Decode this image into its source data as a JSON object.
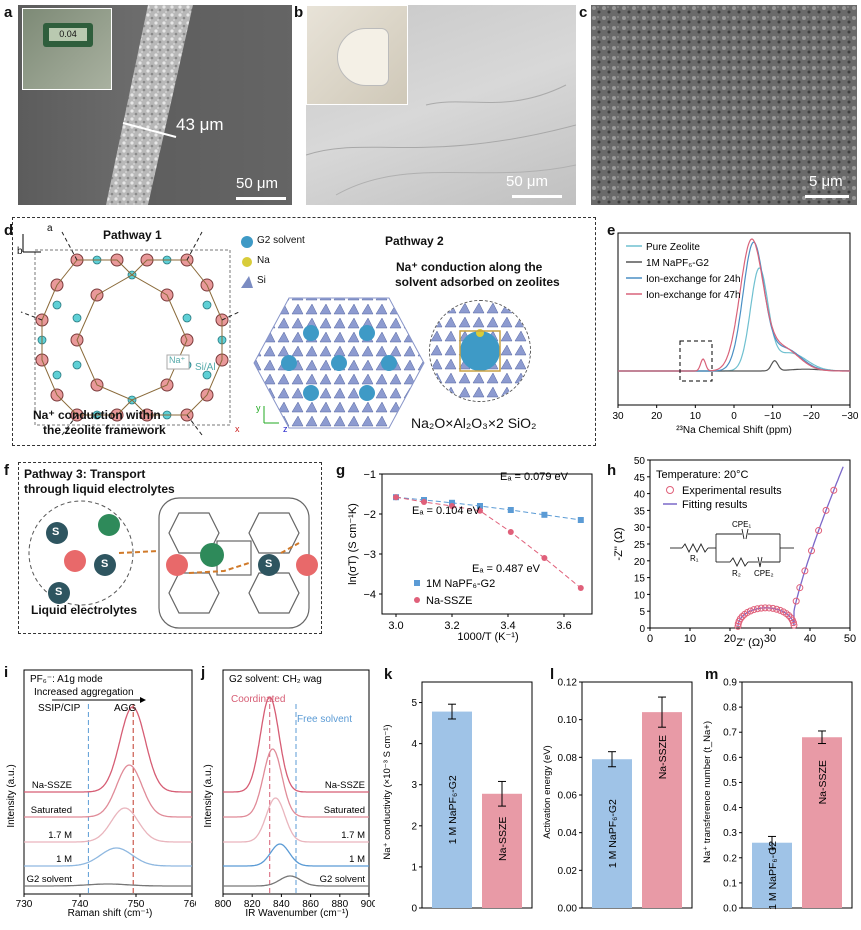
{
  "panels": {
    "a": {
      "letter": "a",
      "thickness": "43 μm",
      "scale": "50 μm",
      "caliper_reading": "0.04"
    },
    "b": {
      "letter": "b",
      "scale": "50 μm"
    },
    "c": {
      "letter": "c",
      "scale": "5 μm"
    },
    "d": {
      "letter": "d",
      "pathway1_title": "Pathway 1",
      "pathway1_caption_line1": "Na⁺ conduction within",
      "pathway1_caption_line2": "the zeolite framework",
      "axis_a": "a",
      "axis_b": "b",
      "label_na": "Na⁺",
      "label_sial": "Si/Al",
      "legend": [
        "G2 solvent",
        "Na",
        "Si"
      ],
      "pathway2_title": "Pathway 2",
      "pathway2_caption_line1": "Na⁺ conduction along the",
      "pathway2_caption_line2": "solvent adsorbed on zeolites",
      "axes3d": [
        "y",
        "x",
        "z"
      ],
      "formula": "Na₂O×Al₂O₃×2 SiO₂"
    },
    "e": {
      "letter": "e",
      "legend": [
        "Pure Zeolite",
        "1M NaPF₆-G2",
        "Ion-exchange for 24h",
        "Ion-exchange for 47h"
      ],
      "xlabel": "²³Na Chemical Shift (ppm)"
    },
    "f": {
      "letter": "f",
      "title_line1": "Pathway 3: Transport",
      "title_line2": "through liquid electrolytes",
      "caption": "Liquid electrolytes",
      "solvent_symbol": "S"
    },
    "g": {
      "letter": "g",
      "ylabel": "ln(σT) (S cm⁻¹K)",
      "xlabel": "1000/T (K⁻¹)",
      "ea1": "Eₐ = 0.079 eV",
      "ea2": "Eₐ = 0.104 eV",
      "ea3": "Eₐ = 0.487 eV",
      "legend": [
        "1M NaPF₆-G2",
        "Na-SSZE"
      ]
    },
    "h": {
      "letter": "h",
      "ylabel": "-Z'' (Ω)",
      "xlabel": "Z' (Ω)",
      "temp": "Temperature: 20°C",
      "legend": [
        "Experimental results",
        "Fitting results"
      ],
      "circuit": [
        "R₁",
        "CPE₁",
        "R₂",
        "CPE₂"
      ]
    },
    "i": {
      "letter": "i",
      "title": "PF₆⁻:   A1g mode",
      "agg": "Increased aggregation",
      "ssip": "SSIP/CIP",
      "aggl": "AGG",
      "ylabel": "Intensity (a.u.)",
      "xlabel": "Raman shift (cm⁻¹)",
      "curves": [
        "Na-SSZE",
        "Saturated",
        "1.7 M",
        "1 M",
        "G2 solvent"
      ]
    },
    "j": {
      "letter": "j",
      "title": "G2 solvent: CH₂ wag",
      "coord": "Coordinated",
      "free": "Free solvent",
      "ylabel": "Intensity (a.u.)",
      "xlabel": "IR Wavenumber (cm⁻¹)",
      "curves": [
        "Na-SSZE",
        "Saturated",
        "1.7 M",
        "1 M",
        "G2 solvent"
      ]
    },
    "k": {
      "letter": "k",
      "ylabel": "Na⁺ conductivity (×10⁻³ S cm⁻¹)"
    },
    "l": {
      "letter": "l",
      "ylabel": "Activation energy (eV)"
    },
    "m": {
      "letter": "m",
      "ylabel": "Na⁺ transference number (t_Na+)"
    }
  },
  "chart_data": [
    {
      "id": "e",
      "type": "line",
      "xlabel": "²³Na Chemical Shift (ppm)",
      "xlim": [
        30,
        -30
      ],
      "xticks": [
        30,
        20,
        10,
        0,
        -10,
        -20,
        -30
      ],
      "series": [
        {
          "name": "Pure Zeolite",
          "color": "#6fc0d0"
        },
        {
          "name": "1M NaPF₆-G2",
          "color": "#555555"
        },
        {
          "name": "Ion-exchange for 24h",
          "color": "#4a8fc4"
        },
        {
          "name": "Ion-exchange for 47h",
          "color": "#d9637a"
        }
      ]
    },
    {
      "id": "g",
      "type": "scatter",
      "xlabel": "1000/T (K⁻¹)",
      "ylabel": "ln(σT) (S cm⁻¹K)",
      "xlim": [
        2.95,
        3.7
      ],
      "ylim": [
        -4.5,
        -1
      ],
      "xticks": [
        3.0,
        3.2,
        3.4,
        3.6
      ],
      "yticks": [
        -1,
        -2,
        -3,
        -4
      ],
      "series": [
        {
          "name": "1M NaPF₆-G2",
          "color": "#5b9bd5",
          "x": [
            3.0,
            3.1,
            3.2,
            3.3,
            3.41,
            3.53,
            3.66
          ],
          "y": [
            -1.58,
            -1.65,
            -1.72,
            -1.8,
            -1.9,
            -2.02,
            -2.15
          ]
        },
        {
          "name": "Na-SSZE",
          "color": "#e0607a",
          "x": [
            3.0,
            3.1,
            3.2,
            3.3,
            3.41,
            3.53,
            3.66
          ],
          "y": [
            -1.58,
            -1.7,
            -1.8,
            -1.92,
            -2.45,
            -3.1,
            -3.85
          ]
        }
      ]
    },
    {
      "id": "h",
      "type": "scatter",
      "xlabel": "Z' (Ω)",
      "ylabel": "-Z'' (Ω)",
      "xlim": [
        0,
        50
      ],
      "ylim": [
        0,
        50
      ],
      "xticks": [
        0,
        10,
        20,
        30,
        40,
        50
      ],
      "yticks": [
        0,
        5,
        10,
        15,
        20,
        25,
        30,
        35,
        40,
        45,
        50
      ],
      "series": [
        {
          "name": "Experimental results",
          "color": "#e0607a"
        },
        {
          "name": "Fitting results",
          "color": "#7b68c9"
        }
      ]
    },
    {
      "id": "i",
      "type": "line",
      "xlabel": "Raman shift (cm⁻¹)",
      "xlim": [
        730,
        760
      ],
      "xticks": [
        730,
        740,
        750,
        760
      ],
      "reference_lines": [
        741.5,
        749.5
      ]
    },
    {
      "id": "j",
      "type": "line",
      "xlabel": "IR Wavenumber (cm⁻¹)",
      "xlim": [
        800,
        900
      ],
      "xticks": [
        800,
        820,
        840,
        860,
        880,
        900
      ],
      "reference_lines": [
        832,
        850
      ]
    },
    {
      "id": "k",
      "type": "bar",
      "categories": [
        "1 M NaPF₆-G2",
        "Na-SSZE"
      ],
      "values": [
        4.78,
        2.78
      ],
      "errors": [
        0.18,
        0.3
      ],
      "ylabel": "Na⁺ conductivity (×10⁻³ S cm⁻¹)",
      "ylim": [
        0,
        5.5
      ],
      "yticks": [
        0,
        1,
        2,
        3,
        4,
        5
      ],
      "colors": [
        "#9fc3e7",
        "#e89aa6"
      ]
    },
    {
      "id": "l",
      "type": "bar",
      "categories": [
        "1 M NaPF₆-G2",
        "Na-SSZE"
      ],
      "values": [
        0.079,
        0.104
      ],
      "errors": [
        0.004,
        0.008
      ],
      "ylabel": "Activation energy (eV)",
      "ylim": [
        0,
        0.12
      ],
      "yticks": [
        0.0,
        0.02,
        0.04,
        0.06,
        0.08,
        0.1,
        0.12
      ],
      "colors": [
        "#9fc3e7",
        "#e89aa6"
      ]
    },
    {
      "id": "m",
      "type": "bar",
      "categories": [
        "1 M NaPF₆-G2",
        "Na-SSZE"
      ],
      "values": [
        0.26,
        0.68
      ],
      "errors": [
        0.025,
        0.025
      ],
      "ylabel": "Na⁺ transference number (t_Na+)",
      "ylim": [
        0,
        0.9
      ],
      "yticks": [
        0.0,
        0.1,
        0.2,
        0.3,
        0.4,
        0.5,
        0.6,
        0.7,
        0.8,
        0.9
      ],
      "colors": [
        "#9fc3e7",
        "#e89aa6"
      ]
    }
  ]
}
